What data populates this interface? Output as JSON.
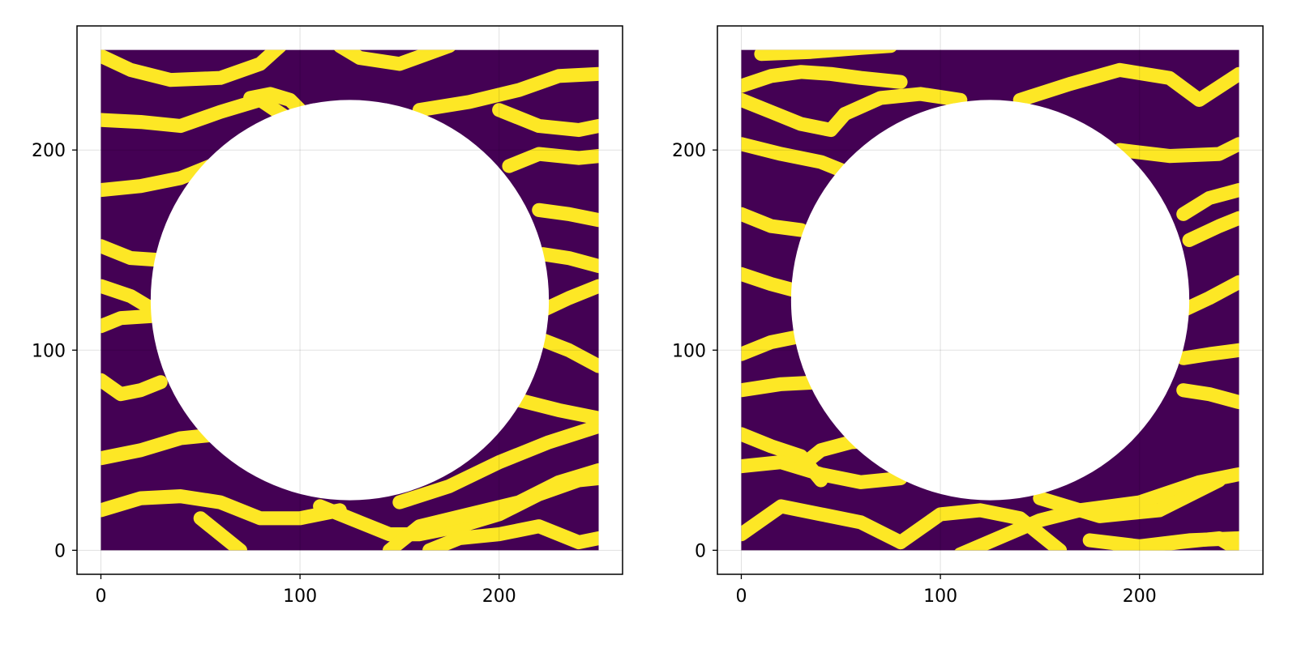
{
  "chart_data": [
    {
      "type": "heatmap",
      "title": "",
      "xlabel": "",
      "ylabel": "",
      "xlim": [
        -12,
        262
      ],
      "ylim": [
        -12,
        262
      ],
      "data_extent": {
        "x": [
          0,
          250
        ],
        "y": [
          0,
          250
        ]
      },
      "xticks": [
        0,
        100,
        200
      ],
      "yticks": [
        0,
        100,
        200
      ],
      "xtick_labels": [
        "0",
        "100",
        "200"
      ],
      "ytick_labels": [
        "0",
        "100",
        "200"
      ],
      "grid": true,
      "colormap": "viridis",
      "background_color": "#440154",
      "stripe_color": "#fde725",
      "masked_region": {
        "shape": "circle",
        "center": [
          125,
          125
        ],
        "radius": 100,
        "color": "#ffffff"
      },
      "stripes": [
        {
          "x": [
            0,
            15,
            35,
            60,
            80,
            90
          ],
          "y": [
            247,
            240,
            235,
            236,
            243,
            252
          ]
        },
        {
          "x": [
            0,
            20,
            40,
            60,
            80,
            95,
            110
          ],
          "y": [
            215,
            214,
            212,
            219,
            225,
            215,
            200
          ]
        },
        {
          "x": [
            75,
            85,
            95,
            105
          ],
          "y": [
            226,
            228,
            225,
            215
          ]
        },
        {
          "x": [
            120,
            130,
            150,
            175
          ],
          "y": [
            252,
            246,
            243,
            252
          ]
        },
        {
          "x": [
            0,
            20,
            40,
            60
          ],
          "y": [
            180,
            182,
            186,
            194
          ]
        },
        {
          "x": [
            0,
            15,
            30,
            50
          ],
          "y": [
            152,
            146,
            145,
            147
          ]
        },
        {
          "x": [
            0,
            15,
            30
          ],
          "y": [
            132,
            127,
            118
          ]
        },
        {
          "x": [
            0,
            10,
            25
          ],
          "y": [
            112,
            116,
            117
          ]
        },
        {
          "x": [
            0,
            10,
            20,
            30
          ],
          "y": [
            85,
            78,
            80,
            84
          ]
        },
        {
          "x": [
            0,
            20,
            40,
            60,
            80
          ],
          "y": [
            46,
            50,
            56,
            58,
            54
          ]
        },
        {
          "x": [
            0,
            20,
            40,
            60,
            80,
            100,
            120
          ],
          "y": [
            20,
            26,
            27,
            24,
            16,
            16,
            20
          ]
        },
        {
          "x": [
            50,
            60,
            70
          ],
          "y": [
            16,
            8,
            0
          ]
        },
        {
          "x": [
            110,
            130,
            145,
            160,
            180,
            200,
            220,
            240,
            250
          ],
          "y": [
            22,
            14,
            8,
            8,
            12,
            18,
            28,
            35,
            36
          ]
        },
        {
          "x": [
            145,
            160,
            185,
            210,
            230,
            250
          ],
          "y": [
            0,
            12,
            18,
            24,
            34,
            40
          ]
        },
        {
          "x": [
            150,
            175,
            200,
            225,
            250
          ],
          "y": [
            24,
            32,
            44,
            54,
            62
          ]
        },
        {
          "x": [
            165,
            180,
            200,
            220,
            240,
            250
          ],
          "y": [
            0,
            6,
            8,
            12,
            4,
            6
          ]
        },
        {
          "x": [
            160,
            185,
            210,
            230,
            250
          ],
          "y": [
            220,
            224,
            230,
            237,
            238
          ]
        },
        {
          "x": [
            200,
            220,
            240,
            250
          ],
          "y": [
            220,
            212,
            210,
            212
          ]
        },
        {
          "x": [
            205,
            220,
            240,
            250
          ],
          "y": [
            192,
            198,
            196,
            197
          ]
        },
        {
          "x": [
            220,
            235,
            250
          ],
          "y": [
            170,
            168,
            165
          ]
        },
        {
          "x": [
            222,
            235,
            250
          ],
          "y": [
            148,
            146,
            142
          ]
        },
        {
          "x": [
            222,
            235,
            250
          ],
          "y": [
            120,
            126,
            132
          ]
        },
        {
          "x": [
            222,
            235,
            250
          ],
          "y": [
            105,
            100,
            92
          ]
        },
        {
          "x": [
            210,
            230,
            250
          ],
          "y": [
            75,
            70,
            66
          ]
        }
      ]
    },
    {
      "type": "heatmap",
      "title": "",
      "xlabel": "",
      "ylabel": "",
      "xlim": [
        -12,
        262
      ],
      "ylim": [
        -12,
        262
      ],
      "data_extent": {
        "x": [
          0,
          250
        ],
        "y": [
          0,
          250
        ]
      },
      "xticks": [
        0,
        100,
        200
      ],
      "yticks": [
        0,
        100,
        200
      ],
      "xtick_labels": [
        "0",
        "100",
        "200"
      ],
      "ytick_labels": [
        "0",
        "100",
        "200"
      ],
      "grid": true,
      "colormap": "viridis",
      "background_color": "#440154",
      "stripe_color": "#fde725",
      "masked_region": {
        "shape": "circle",
        "center": [
          125,
          125
        ],
        "radius": 100,
        "color": "#ffffff"
      },
      "stripes": [
        {
          "x": [
            10,
            35,
            60,
            75
          ],
          "y": [
            248,
            249,
            251,
            252
          ]
        },
        {
          "x": [
            0,
            15,
            30,
            45,
            60,
            80
          ],
          "y": [
            232,
            237,
            239,
            238,
            236,
            234
          ]
        },
        {
          "x": [
            0,
            15,
            30,
            45,
            52
          ],
          "y": [
            225,
            219,
            213,
            210,
            218
          ]
        },
        {
          "x": [
            52,
            70,
            90,
            110
          ],
          "y": [
            218,
            226,
            228,
            225
          ]
        },
        {
          "x": [
            0,
            20,
            40,
            50
          ],
          "y": [
            203,
            198,
            194,
            190
          ]
        },
        {
          "x": [
            0,
            15,
            30
          ],
          "y": [
            168,
            162,
            160
          ]
        },
        {
          "x": [
            0,
            15,
            30
          ],
          "y": [
            138,
            133,
            129
          ]
        },
        {
          "x": [
            0,
            15,
            30
          ],
          "y": [
            98,
            104,
            107
          ]
        },
        {
          "x": [
            0,
            20,
            40,
            55
          ],
          "y": [
            80,
            83,
            84,
            82
          ]
        },
        {
          "x": [
            40,
            50,
            60
          ],
          "y": [
            84,
            70,
            55
          ]
        },
        {
          "x": [
            0,
            15,
            30,
            40
          ],
          "y": [
            58,
            52,
            47,
            35
          ]
        },
        {
          "x": [
            0,
            20,
            40,
            60,
            80
          ],
          "y": [
            42,
            44,
            38,
            34,
            36
          ]
        },
        {
          "x": [
            30,
            40,
            55,
            70
          ],
          "y": [
            42,
            50,
            54,
            55
          ]
        },
        {
          "x": [
            0,
            20,
            40,
            60,
            80
          ],
          "y": [
            8,
            22,
            18,
            14,
            4
          ]
        },
        {
          "x": [
            80,
            100,
            120,
            140,
            160
          ],
          "y": [
            4,
            18,
            20,
            16,
            0
          ]
        },
        {
          "x": [
            110,
            150,
            170,
            200,
            230,
            250
          ],
          "y": [
            -2,
            15,
            20,
            24,
            34,
            38
          ]
        },
        {
          "x": [
            150,
            180,
            210,
            240
          ],
          "y": [
            26,
            17,
            20,
            35
          ]
        },
        {
          "x": [
            190,
            220,
            240,
            250
          ],
          "y": [
            0,
            4,
            6,
            0
          ]
        },
        {
          "x": [
            175,
            200,
            225,
            250
          ],
          "y": [
            5,
            2,
            5,
            6
          ]
        },
        {
          "x": [
            140,
            165,
            190,
            215,
            230,
            250
          ],
          "y": [
            225,
            233,
            240,
            236,
            225,
            238
          ]
        },
        {
          "x": [
            190,
            215,
            240,
            250
          ],
          "y": [
            200,
            197,
            198,
            203
          ]
        },
        {
          "x": [
            222,
            235,
            250
          ],
          "y": [
            168,
            176,
            180
          ]
        },
        {
          "x": [
            225,
            240,
            250
          ],
          "y": [
            155,
            162,
            166
          ]
        },
        {
          "x": [
            222,
            235,
            250
          ],
          "y": [
            120,
            126,
            134
          ]
        },
        {
          "x": [
            222,
            235,
            250
          ],
          "y": [
            96,
            98,
            100
          ]
        },
        {
          "x": [
            222,
            235,
            250
          ],
          "y": [
            80,
            78,
            74
          ]
        }
      ]
    }
  ]
}
